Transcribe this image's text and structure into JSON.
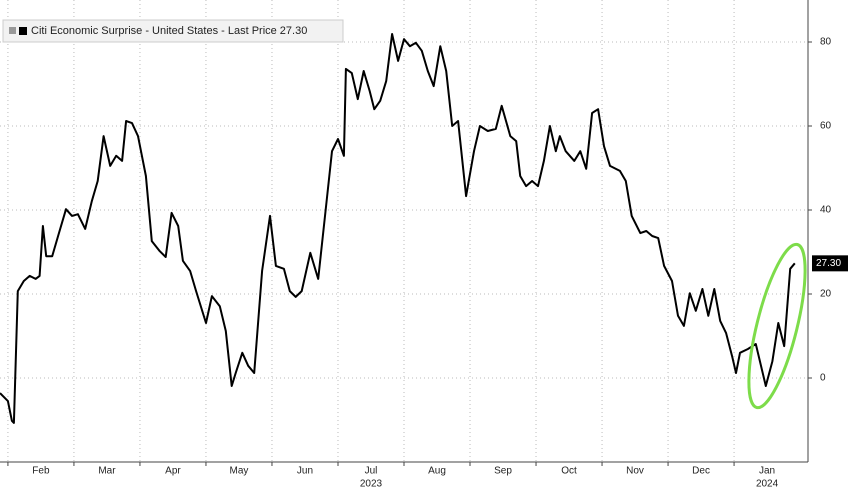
{
  "chart_data": {
    "type": "line",
    "series": [
      {
        "name": "Citi Economic Surprise - United States - Last Price 27.30",
        "color": "#000000",
        "x": [
          0.88,
          1.0,
          1.06,
          1.09,
          1.15,
          1.24,
          1.33,
          1.42,
          1.48,
          1.53,
          1.58,
          1.67,
          1.76,
          1.88,
          1.97,
          2.06,
          2.17,
          2.27,
          2.36,
          2.45,
          2.55,
          2.64,
          2.73,
          2.79,
          2.88,
          2.97,
          3.09,
          3.18,
          3.3,
          3.39,
          3.48,
          3.58,
          3.65,
          3.76,
          3.85,
          4.0,
          4.09,
          4.21,
          4.3,
          4.39,
          4.45,
          4.55,
          4.64,
          4.73,
          4.85,
          4.97,
          5.06,
          5.18,
          5.27,
          5.36,
          5.45,
          5.58,
          5.7,
          5.82,
          5.91,
          6.0,
          6.09,
          6.12,
          6.21,
          6.3,
          6.39,
          6.48,
          6.55,
          6.64,
          6.73,
          6.82,
          6.91,
          7.0,
          7.09,
          7.18,
          7.27,
          7.36,
          7.45,
          7.55,
          7.64,
          7.73,
          7.82,
          7.94,
          8.06,
          8.15,
          8.27,
          8.39,
          8.48,
          8.61,
          8.7,
          8.76,
          8.85,
          8.94,
          9.03,
          9.12,
          9.21,
          9.3,
          9.36,
          9.45,
          9.58,
          9.67,
          9.76,
          9.85,
          9.94,
          10.03,
          10.12,
          10.27,
          10.36,
          10.45,
          10.58,
          10.67,
          10.76,
          10.85,
          10.94,
          11.06,
          11.15,
          11.24,
          11.33,
          11.42,
          11.52,
          11.61,
          11.7,
          11.79,
          11.88,
          11.97,
          12.03,
          12.09,
          12.21,
          12.33,
          12.48,
          12.58,
          12.67,
          12.76,
          12.85,
          12.92
        ],
        "values": [
          -3.6,
          -5.5,
          -10.2,
          -10.7,
          20.7,
          23.1,
          24.3,
          23.6,
          24.3,
          36.2,
          29.0,
          29.0,
          33.8,
          40.2,
          38.6,
          39.0,
          35.5,
          42.1,
          46.9,
          57.6,
          50.5,
          52.9,
          51.7,
          61.2,
          60.7,
          57.6,
          48.1,
          32.6,
          30.2,
          28.8,
          39.3,
          36.2,
          27.9,
          25.5,
          20.7,
          13.1,
          19.5,
          17.1,
          11.2,
          -1.9,
          1.2,
          6.0,
          2.9,
          1.2,
          25.5,
          38.6,
          26.7,
          26.0,
          20.7,
          19.3,
          20.7,
          29.8,
          23.6,
          41.0,
          54.0,
          56.9,
          52.9,
          73.6,
          72.6,
          66.4,
          73.1,
          68.3,
          64.0,
          66.0,
          70.7,
          81.9,
          75.5,
          80.7,
          79.0,
          79.8,
          77.9,
          73.1,
          69.5,
          79.0,
          73.1,
          60.0,
          61.2,
          43.3,
          54.0,
          60.0,
          58.8,
          59.3,
          64.8,
          57.6,
          56.4,
          48.1,
          45.7,
          46.9,
          45.7,
          51.7,
          60.0,
          54.0,
          57.6,
          54.0,
          51.7,
          54.0,
          49.8,
          63.1,
          64.0,
          55.2,
          50.5,
          49.3,
          46.9,
          38.6,
          34.5,
          35.0,
          33.8,
          33.3,
          26.7,
          23.1,
          14.8,
          12.4,
          20.2,
          16.0,
          21.2,
          14.8,
          21.2,
          13.6,
          10.7,
          5.2,
          1.2,
          6.0,
          6.9,
          8.1,
          -1.9,
          4.0,
          13.1,
          7.6,
          26.0,
          27.3
        ]
      }
    ],
    "last_price_label": "27.30",
    "xlim": [
      0.88,
      13.12
    ],
    "xticks": [
      {
        "value": 1.5,
        "label": "Feb"
      },
      {
        "value": 2.5,
        "label": "Mar"
      },
      {
        "value": 3.5,
        "label": "Apr"
      },
      {
        "value": 4.5,
        "label": "May"
      },
      {
        "value": 5.5,
        "label": "Jun"
      },
      {
        "value": 6.5,
        "label": "Jul"
      },
      {
        "value": 7.5,
        "label": "Aug"
      },
      {
        "value": 8.5,
        "label": "Sep"
      },
      {
        "value": 9.5,
        "label": "Oct"
      },
      {
        "value": 10.5,
        "label": "Nov"
      },
      {
        "value": 11.5,
        "label": "Dec"
      },
      {
        "value": 12.5,
        "label": "Jan"
      }
    ],
    "x_year_labels": [
      {
        "value": 6.5,
        "label": "2023"
      },
      {
        "value": 12.5,
        "label": "2024"
      }
    ],
    "ylim": [
      -20,
      90
    ],
    "yticks": [
      0,
      20,
      40,
      60,
      80
    ],
    "grid": true
  }
}
